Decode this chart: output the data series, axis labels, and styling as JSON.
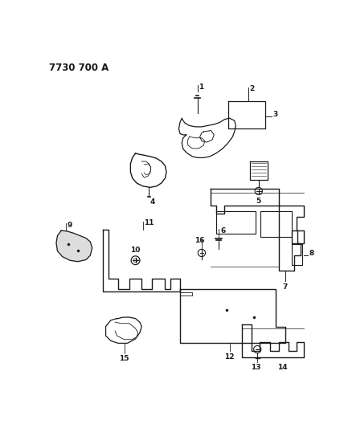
{
  "title": "7730 700 A",
  "bg_color": "#ffffff",
  "line_color": "#1a1a1a",
  "fig_width": 4.28,
  "fig_height": 5.33,
  "dpi": 100
}
